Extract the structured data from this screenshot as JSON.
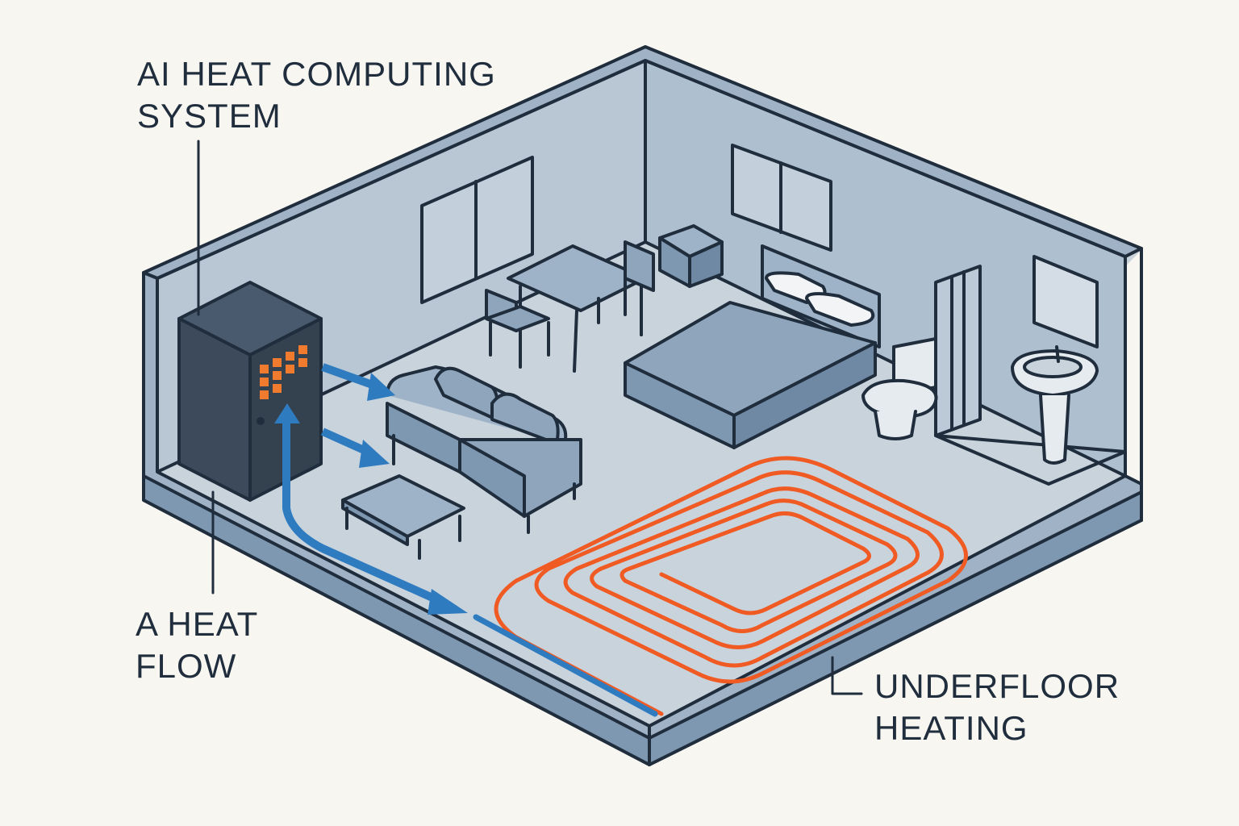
{
  "labels": {
    "ai_system": {
      "line1": "AI HEAT COMPUTING",
      "line2": "SYSTEM"
    },
    "heat_flow": {
      "line1": "A HEAT",
      "line2": "FLOW"
    },
    "underfloor": {
      "line1": "UNDERFLOOR",
      "line2": "HEATING"
    }
  },
  "colors": {
    "background": "#f8f6f1",
    "wall": "#b9c6d3",
    "wall_face": "#9fb2c6",
    "floor": "#c9d3dc",
    "outline": "#1f2d3d",
    "furniture": "#9fb3c8",
    "server": "#3c4a5c",
    "server_leds": "#f07a2d",
    "heat_flow": "#2f7bbf",
    "underfloor_pipe": "#f05a23"
  },
  "icons": {
    "server": "server-cabinet-icon",
    "table": "dining-table-icon",
    "sofa": "sofa-icon",
    "bed": "bed-icon",
    "toilet": "toilet-icon",
    "sink": "sink-icon"
  }
}
